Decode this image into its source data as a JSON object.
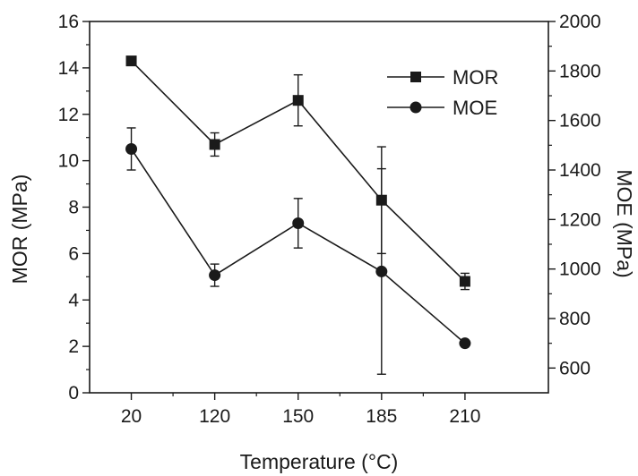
{
  "chart_data": {
    "type": "line",
    "categories": [
      "20",
      "120",
      "150",
      "185",
      "210"
    ],
    "xlabel": "Temperature (°C)",
    "ylabel_left": "MOR (MPa)",
    "ylabel_right": "MOE (MPa)",
    "ylim_left": [
      0,
      16
    ],
    "yticks_left": [
      0,
      2,
      4,
      6,
      8,
      10,
      12,
      14,
      16
    ],
    "ylim_right": [
      500,
      2000
    ],
    "yticks_right": [
      600,
      800,
      1000,
      1200,
      1400,
      1600,
      1800,
      2000
    ],
    "legend_position": "top-right",
    "grid": false,
    "series": [
      {
        "name": "MOR",
        "axis": "left",
        "marker": "square",
        "values": [
          14.3,
          10.7,
          12.6,
          8.3,
          4.8
        ],
        "error": [
          0.15,
          0.5,
          1.1,
          2.3,
          0.35
        ]
      },
      {
        "name": "MOE",
        "axis": "right",
        "marker": "circle",
        "values": [
          1485,
          975,
          1185,
          990,
          700
        ],
        "error": [
          85,
          45,
          100,
          415,
          0
        ]
      }
    ]
  },
  "colors": {
    "ink": "#1a1a1a",
    "background": "#ffffff"
  }
}
